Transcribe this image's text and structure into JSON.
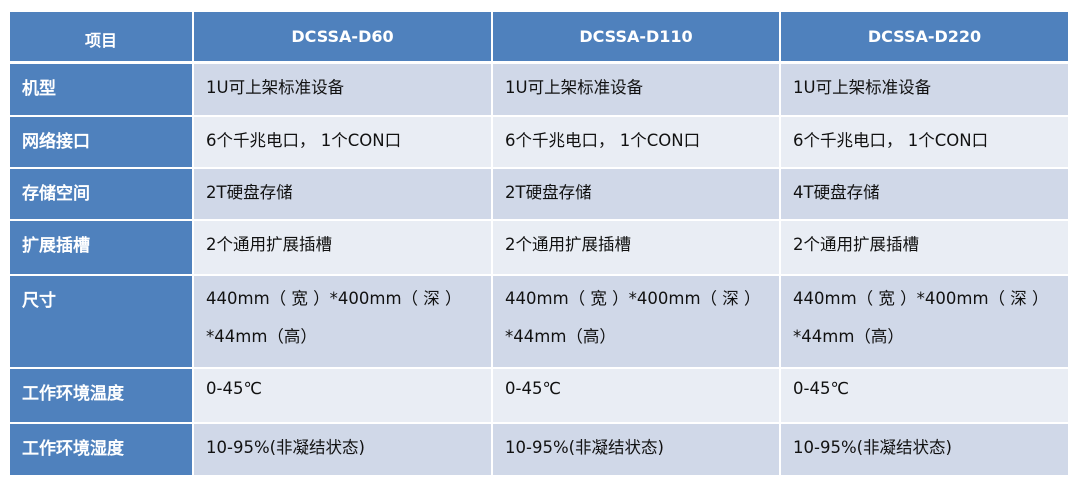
{
  "colors": {
    "header": "#4f81bd",
    "row_dark": "#d0d8e8",
    "row_light": "#e9edf4"
  },
  "headers": [
    "项目",
    "DCSSA-D60",
    "DCSSA-D110",
    "DCSSA-D220"
  ],
  "rows": [
    {
      "label": "机型",
      "values": [
        "1U可上架标准设备",
        "1U可上架标准设备",
        "1U可上架标准设备"
      ]
    },
    {
      "label": "网络接口",
      "values": [
        "6个千兆电口， 1个CON口",
        "6个千兆电口， 1个CON口",
        "6个千兆电口， 1个CON口"
      ]
    },
    {
      "label": "存储空间",
      "values": [
        "2T硬盘存储",
        "2T硬盘存储",
        "4T硬盘存储"
      ]
    },
    {
      "label": "扩展插槽",
      "values": [
        "2个通用扩展插槽",
        "2个通用扩展插槽",
        "2个通用扩展插槽"
      ]
    },
    {
      "label": "尺寸",
      "values": [
        "440mm（ 宽 ）*400mm（ 深 ）*44mm（高）",
        "440mm（ 宽 ）*400mm（ 深 ）*44mm（高）",
        "440mm（ 宽 ）*400mm（ 深 ）*44mm（高）"
      ],
      "lines": [
        [
          "440mm（ 宽 ）*400mm（ 深 ）",
          "*44mm（高）"
        ],
        [
          "440mm（ 宽 ）*400mm（ 深 ）",
          "*44mm（高）"
        ],
        [
          "440mm（ 宽 ）*400mm（ 深 ）",
          "*44mm（高）"
        ]
      ]
    },
    {
      "label": "工作环境温度",
      "values": [
        "0-45℃",
        "0-45℃",
        "0-45℃"
      ]
    },
    {
      "label": "工作环境湿度",
      "values": [
        "10-95%(非凝结状态)",
        "10-95%(非凝结状态)",
        "10-95%(非凝结状态)"
      ]
    }
  ]
}
